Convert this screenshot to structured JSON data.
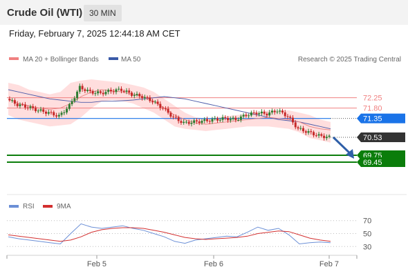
{
  "header": {
    "title": "Crude Oil (WTI)",
    "timeframe": "30 MIN"
  },
  "datetime": "Friday, February 7, 2025 12:44:18 AM CET",
  "legend": {
    "ma20": "MA 20 + Bollinger Bands",
    "ma50": "MA 50",
    "credit": "Research © 2025 Trading Central"
  },
  "rsi_legend": {
    "rsi": "RSI",
    "ma9": "9MA"
  },
  "colors": {
    "resistance": "#f08080",
    "pivot": "#1a73e8",
    "support": "#0b7d0b",
    "bollinger": "#ffd6d6",
    "ma20": "#e88080",
    "ma50": "#4a5aa8",
    "up": "#2e7d32",
    "down": "#c62828",
    "rsi": "#6b8fd6",
    "rsi_ma": "#d32f2f"
  },
  "chart_data": [
    {
      "type": "line",
      "title": "Crude Oil (WTI) 30 MIN",
      "x_tick_labels": [
        "Feb 5",
        "Feb 6",
        "Feb 7"
      ],
      "ylim": [
        69.0,
        73.2
      ],
      "key_levels": [
        {
          "value": 72.25,
          "label": "72.25",
          "kind": "resistance"
        },
        {
          "value": 71.8,
          "label": "71.80",
          "kind": "resistance"
        },
        {
          "value": 71.35,
          "label": "71.35",
          "kind": "pivot"
        },
        {
          "value": 70.53,
          "label": "70.53",
          "kind": "last"
        },
        {
          "value": 69.75,
          "label": "69.75",
          "kind": "support"
        },
        {
          "value": 69.45,
          "label": "69.45",
          "kind": "support"
        }
      ],
      "forecast_arrow": {
        "from": 70.53,
        "to": 69.6
      },
      "series": [
        {
          "name": "MA 50",
          "values": [
            72.6,
            72.5,
            72.4,
            72.3,
            72.2,
            72.15,
            72.1,
            72.05,
            72.05,
            72.1,
            72.1,
            72.12,
            72.15,
            72.2,
            72.25,
            72.3,
            72.25,
            72.2,
            72.1,
            72.0,
            71.9,
            71.8,
            71.7,
            71.6,
            71.5,
            71.4,
            71.3,
            71.25,
            71.2,
            71.1,
            71.0,
            70.9
          ]
        },
        {
          "name": "MA 20",
          "values": [
            72.2,
            72.0,
            71.9,
            71.8,
            71.75,
            71.8,
            72.0,
            72.3,
            72.5,
            72.6,
            72.55,
            72.5,
            72.4,
            72.3,
            72.1,
            71.8,
            71.5,
            71.3,
            71.15,
            71.1,
            71.15,
            71.2,
            71.25,
            71.3,
            71.35,
            71.4,
            71.35,
            71.3,
            71.2,
            71.0,
            70.9,
            70.85
          ]
        },
        {
          "name": "Bollinger Upper",
          "values": [
            72.9,
            72.8,
            72.6,
            72.5,
            72.4,
            72.5,
            72.9,
            73.0,
            73.05,
            73.0,
            72.95,
            72.9,
            72.8,
            72.7,
            72.5,
            72.2,
            71.9,
            71.6,
            71.4,
            71.35,
            71.4,
            71.45,
            71.5,
            71.55,
            71.6,
            71.7,
            71.7,
            71.7,
            71.6,
            71.5,
            71.3,
            71.2
          ]
        },
        {
          "name": "Bollinger Lower",
          "values": [
            71.5,
            71.3,
            71.2,
            71.1,
            71.0,
            71.05,
            71.1,
            71.4,
            71.8,
            72.1,
            72.15,
            72.1,
            72.0,
            71.8,
            71.6,
            71.3,
            71.0,
            70.9,
            70.85,
            70.8,
            70.85,
            70.9,
            70.95,
            71.0,
            71.0,
            71.0,
            70.95,
            70.9,
            70.75,
            70.5,
            70.4,
            70.3
          ]
        },
        {
          "name": "Price",
          "values": [
            72.2,
            71.95,
            71.85,
            71.7,
            71.6,
            71.45,
            71.9,
            72.7,
            72.5,
            72.45,
            72.55,
            72.6,
            72.4,
            72.3,
            72.1,
            71.8,
            71.4,
            71.15,
            71.2,
            71.25,
            71.3,
            71.35,
            71.3,
            71.5,
            71.6,
            71.55,
            71.7,
            71.45,
            70.9,
            70.75,
            70.6,
            70.53
          ]
        }
      ]
    },
    {
      "type": "line",
      "title": "RSI",
      "ylim": [
        25,
        75
      ],
      "y_ticks": [
        70,
        50,
        30
      ],
      "series": [
        {
          "name": "RSI",
          "values": [
            45,
            42,
            40,
            38,
            36,
            34,
            50,
            65,
            60,
            58,
            60,
            62,
            58,
            55,
            50,
            45,
            38,
            35,
            40,
            42,
            44,
            46,
            45,
            52,
            60,
            55,
            58,
            48,
            34,
            36,
            37,
            36
          ]
        },
        {
          "name": "9MA",
          "values": [
            48,
            46,
            44,
            42,
            40,
            38,
            40,
            45,
            52,
            56,
            58,
            59,
            59,
            58,
            55,
            52,
            48,
            44,
            42,
            41,
            42,
            43,
            44,
            46,
            50,
            52,
            54,
            53,
            48,
            43,
            40,
            38
          ]
        }
      ]
    }
  ]
}
